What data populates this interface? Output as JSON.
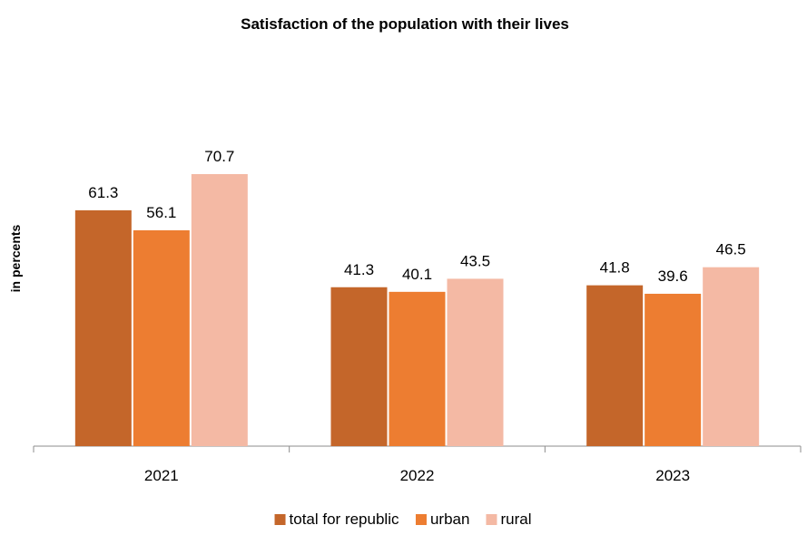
{
  "chart_data": {
    "type": "bar",
    "title": "Satisfaction of the population with their lives",
    "xlabel": "",
    "ylabel": "in percents",
    "categories": [
      "2021",
      "2022",
      "2023"
    ],
    "series": [
      {
        "name": "total for republic",
        "color": "#c4662a",
        "values": [
          61.3,
          41.3,
          41.8
        ],
        "labels": [
          "61.3",
          "41.3",
          "41.8"
        ]
      },
      {
        "name": "urban",
        "color": "#ed7d31",
        "values": [
          56.1,
          40.1,
          39.6
        ],
        "labels": [
          "56.1",
          "40.1",
          "39.6"
        ]
      },
      {
        "name": "rural",
        "color": "#f4b9a4",
        "values": [
          70.7,
          43.5,
          46.5
        ],
        "labels": [
          "70.7",
          "43.5",
          "46.5"
        ]
      }
    ],
    "ylim": [
      0,
      70.7
    ],
    "grid": false,
    "legend": "bottom"
  }
}
